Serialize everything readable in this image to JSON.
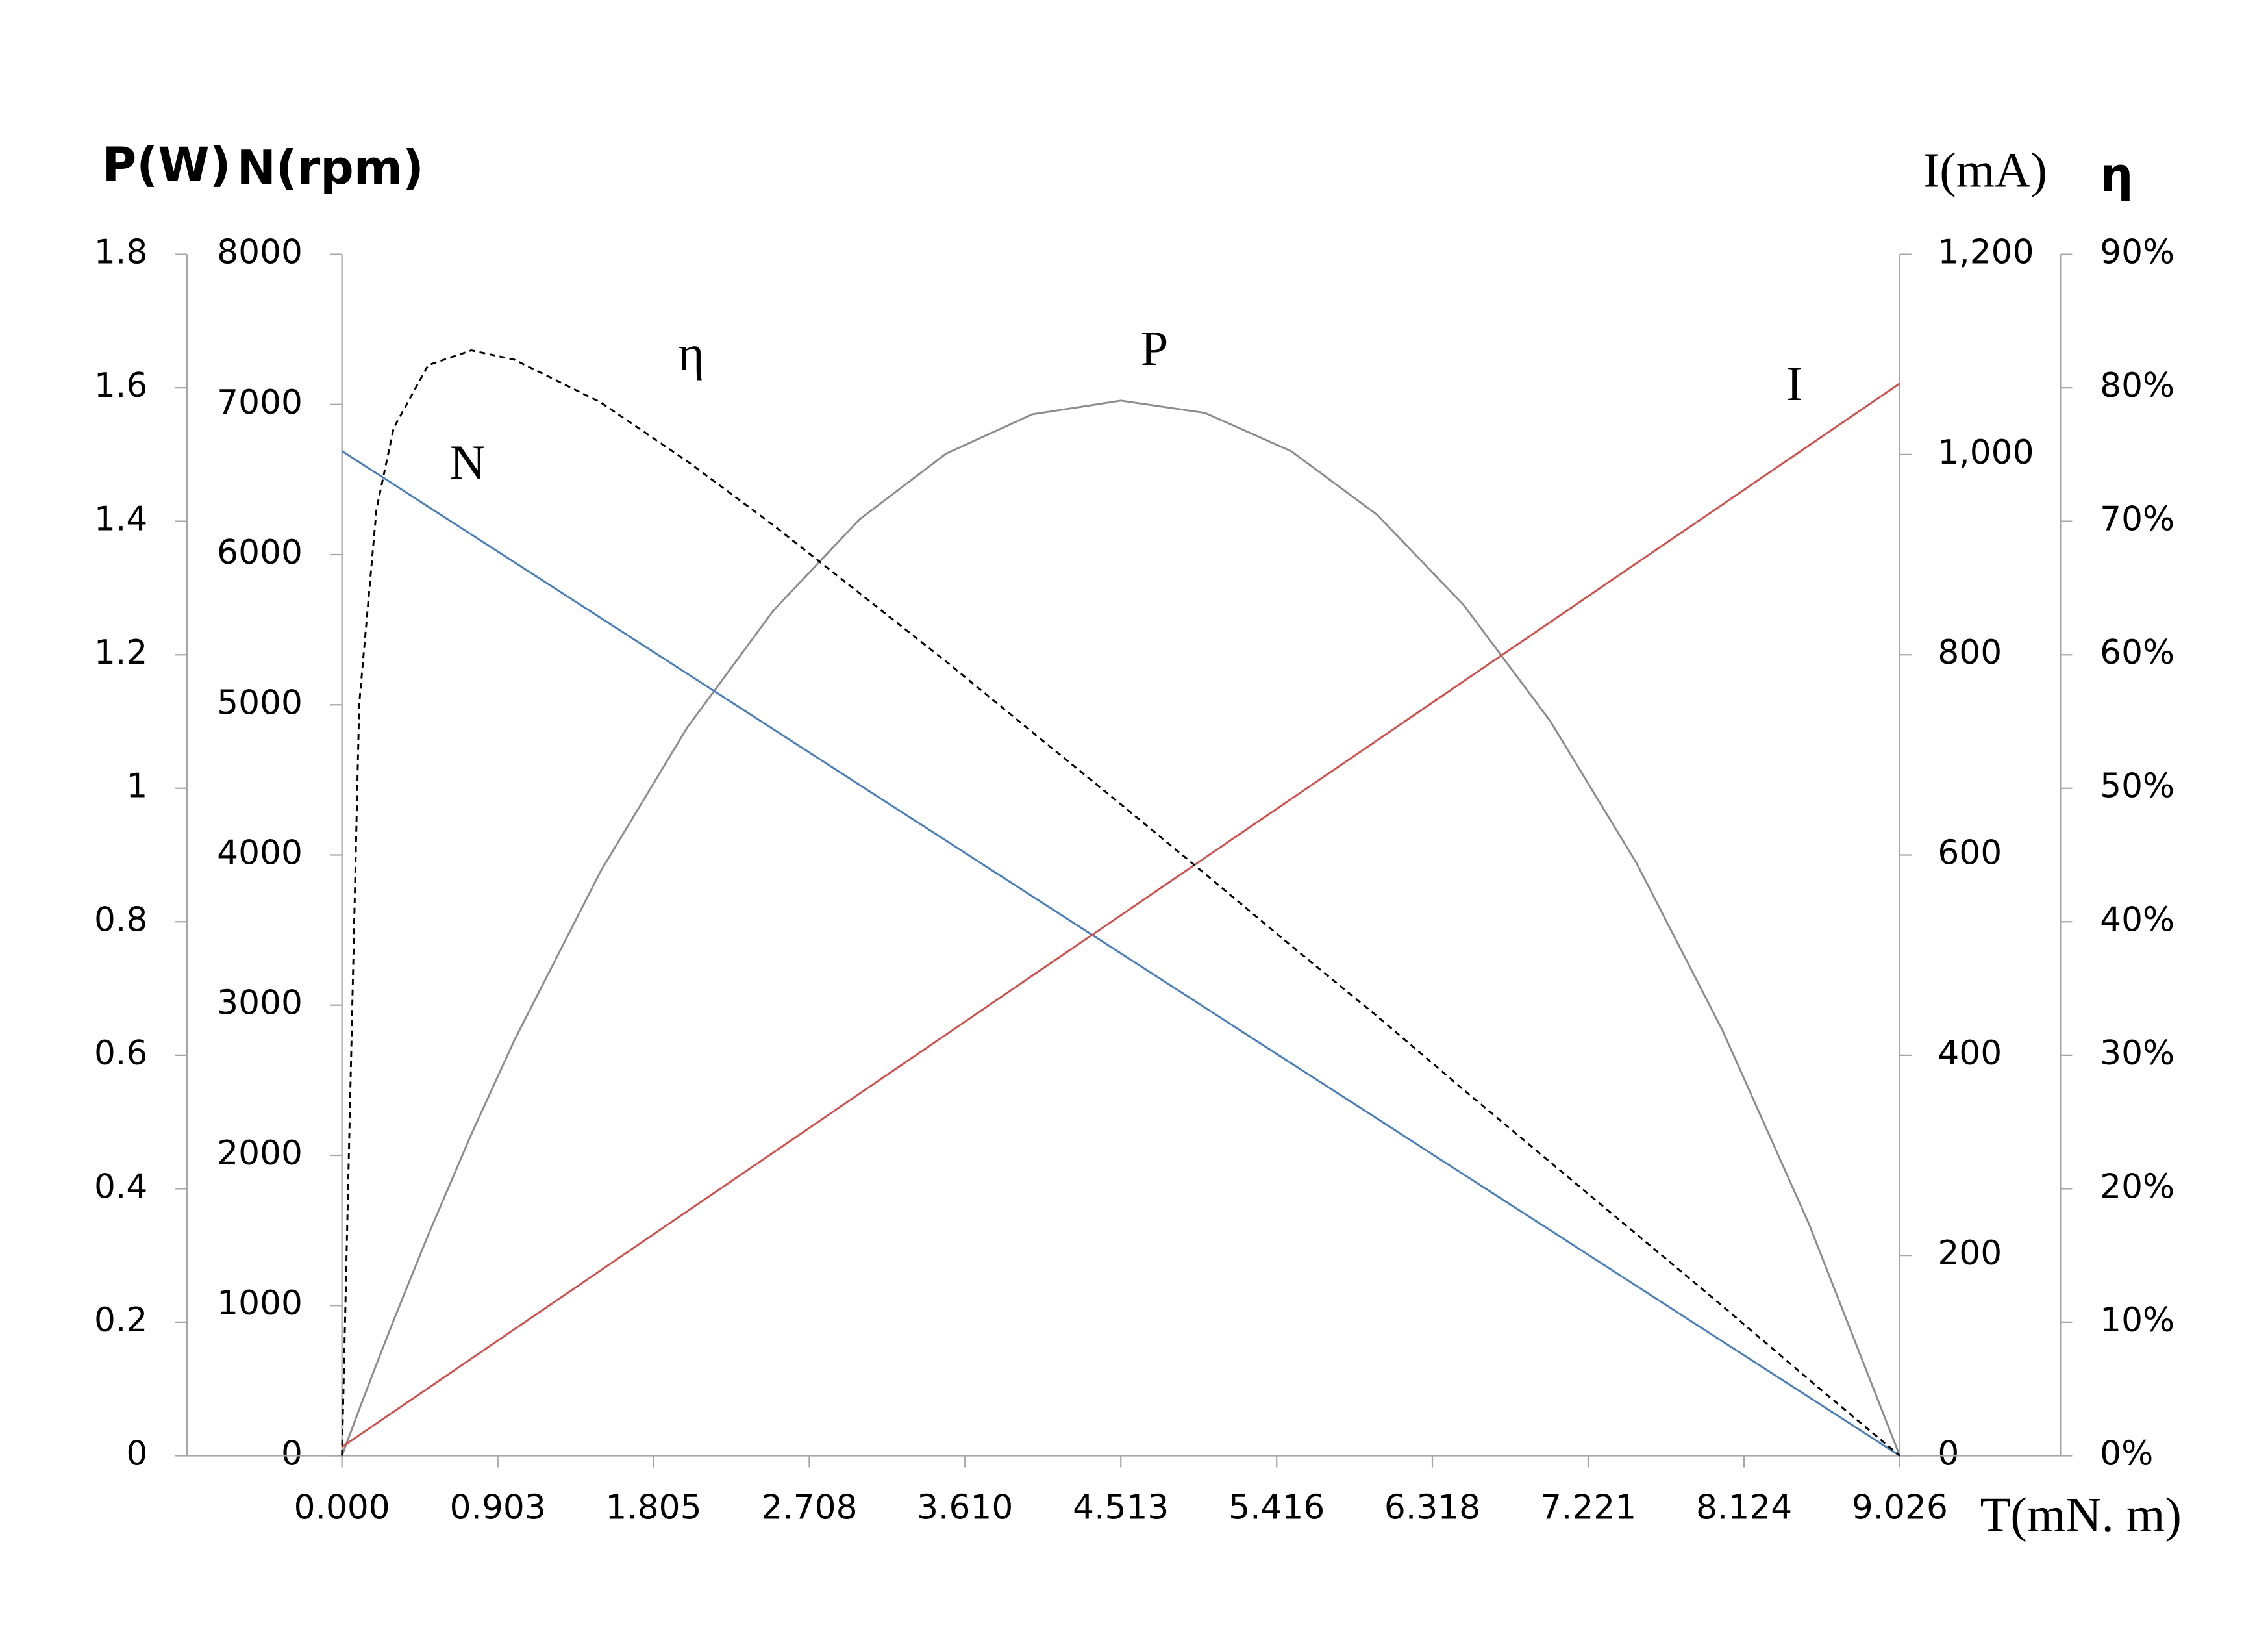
{
  "chart_data": {
    "type": "line",
    "x": [
      0,
      0.1,
      0.2,
      0.3,
      0.5,
      0.75,
      1,
      1.5,
      2,
      2.5,
      3,
      3.5,
      4,
      4.513,
      5,
      5.5,
      6,
      6.5,
      7,
      7.5,
      8,
      8.5,
      9.026
    ],
    "xlim": [
      0,
      9.026
    ],
    "xticks": [
      {
        "value": 0,
        "label": "0.000"
      },
      0.903,
      1.805,
      2.708,
      {
        "value": 3.61,
        "label": "3.610"
      },
      4.513,
      5.416,
      6.318,
      7.221,
      8.124,
      9.026
    ],
    "xlabel": "T(mN. m)",
    "axes": [
      {
        "title": "P(W)",
        "lim": [
          0,
          1.8
        ],
        "ticks": [
          0,
          0.2,
          0.4,
          0.6,
          0.8,
          1,
          1.2,
          1.4,
          1.6,
          1.8
        ]
      },
      {
        "title": "N(rpm)",
        "lim": [
          0,
          8000
        ],
        "ticks": [
          0,
          1000,
          2000,
          3000,
          4000,
          5000,
          6000,
          7000,
          8000
        ]
      },
      {
        "title": "I(mA)",
        "lim": [
          0,
          1200
        ],
        "ticks": [
          0,
          200,
          400,
          600,
          800,
          {
            "value": 1000,
            "label": "1,000"
          },
          {
            "value": 1200,
            "label": "1,200"
          }
        ]
      },
      {
        "title": "η",
        "lim": [
          0,
          90
        ],
        "ticks": [
          {
            "value": 0,
            "label": "0%"
          },
          {
            "value": 10,
            "label": "10%"
          },
          {
            "value": 20,
            "label": "20%"
          },
          {
            "value": 30,
            "label": "30%"
          },
          {
            "value": 40,
            "label": "40%"
          },
          {
            "value": 50,
            "label": "50%"
          },
          {
            "value": 60,
            "label": "60%"
          },
          {
            "value": 70,
            "label": "70%"
          },
          {
            "value": 80,
            "label": "80%"
          },
          {
            "value": 90,
            "label": "90%"
          }
        ]
      }
    ],
    "series": [
      {
        "name": "P",
        "color": "#8c8c8c",
        "axis": 0,
        "dashed": false,
        "values": [
          0,
          0.0693,
          0.137,
          0.2032,
          0.3309,
          0.4818,
          0.623,
          0.8762,
          1.0908,
          1.2663,
          1.4031,
          1.5013,
          1.5603,
          1.5808,
          1.5624,
          1.505,
          1.4093,
          1.2742,
          1.101,
          0.8883,
          0.6367,
          0.3472,
          0
        ]
      },
      {
        "name": "N",
        "color": "#4a7ebb",
        "axis": 1,
        "dashed": false,
        "values": [
          6690,
          6616,
          6542,
          6468,
          6319,
          6134,
          5949,
          5578,
          5208,
          4837,
          4466,
          4096,
          3725,
          3345,
          2984,
          2613,
          2243,
          1872,
          1502,
          1131,
          760,
          390,
          0
        ]
      },
      {
        "name": "I",
        "color": "#d0504d",
        "axis": 2,
        "dashed": false,
        "values": [
          8.7,
          20.5,
          32.2,
          44,
          67.5,
          97,
          126.4,
          185.2,
          244.1,
          302.9,
          361.8,
          420.6,
          479.5,
          539.8,
          597.2,
          656,
          714.8,
          773.7,
          832.5,
          891.4,
          950.2,
          1009.1,
          1071
        ]
      },
      {
        "name": "η",
        "color": "#000000",
        "axis": 3,
        "dashed": true,
        "values": [
          0,
          56.3,
          70.9,
          77,
          81.7,
          82.8,
          82.1,
          78.9,
          74.5,
          69.7,
          64.6,
          59.5,
          54.2,
          48.8,
          43.6,
          38.2,
          32.9,
          27.4,
          22,
          16.6,
          11.2,
          5.7,
          0
        ]
      }
    ]
  }
}
